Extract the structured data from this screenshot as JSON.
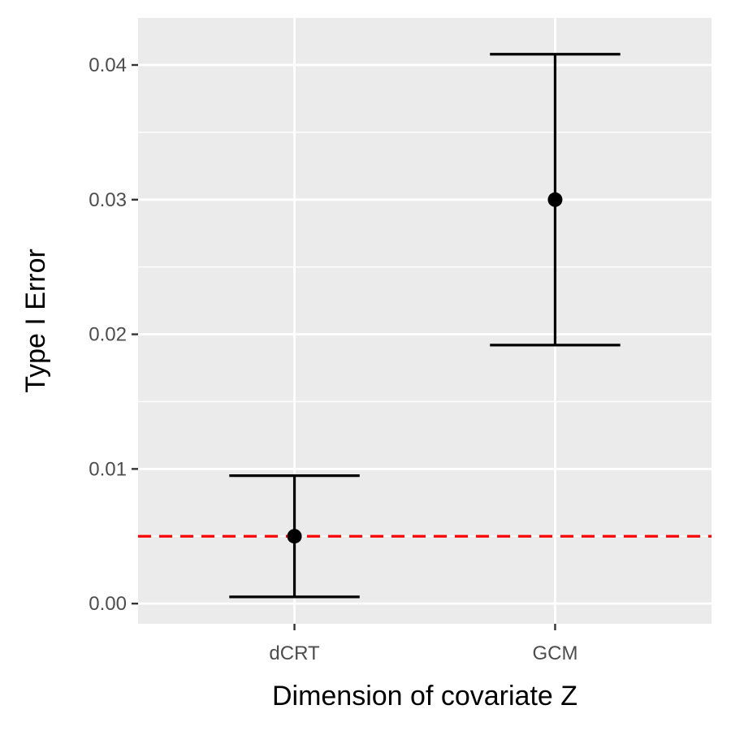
{
  "chart_data": {
    "type": "errorbar",
    "title": "",
    "xlabel": "Dimension of covariate Z",
    "ylabel": "Type I Error",
    "categories": [
      "dCRT",
      "GCM"
    ],
    "values": [
      0.005,
      0.03
    ],
    "lower": [
      0.0005,
      0.0192
    ],
    "upper": [
      0.0095,
      0.0408
    ],
    "ylim": [
      -0.0015,
      0.0435
    ],
    "yticks": [
      0.0,
      0.01,
      0.02,
      0.03,
      0.04
    ],
    "ytick_labels": [
      "0.00",
      "0.01",
      "0.02",
      "0.03",
      "0.04"
    ],
    "reference_line": {
      "y": 0.005,
      "color": "#ff0000",
      "style": "dashed"
    },
    "grid": true,
    "colors": {
      "panel": "#ebebeb",
      "grid": "#ffffff",
      "point": "#000000"
    }
  }
}
